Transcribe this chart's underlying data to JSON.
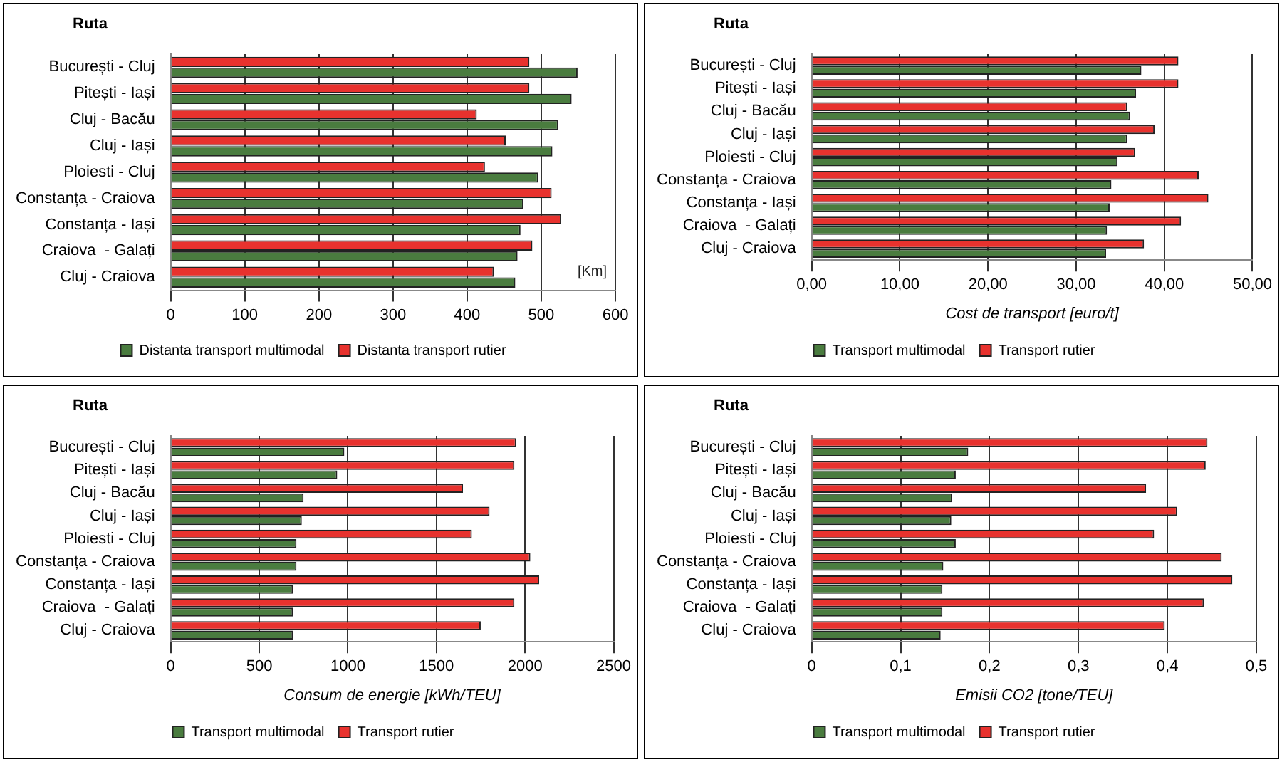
{
  "chart_data": [
    {
      "type": "bar",
      "orientation": "horizontal",
      "ylabel": "Ruta",
      "categories": [
        "București - Cluj",
        "Pitești - Iași",
        "Cluj - Bacău",
        "Cluj - Iași",
        "Ploiesti - Cluj",
        "Constanța - Craiova",
        "Constanța - Iași",
        "Craiova  - Galați",
        "Cluj - Craiova"
      ],
      "series": [
        {
          "name": "Distanta transport rutier",
          "color": "#e8322e",
          "values": [
            484,
            484,
            413,
            452,
            424,
            514,
            527,
            488,
            436
          ]
        },
        {
          "name": "Distanta transport multimodal",
          "color": "#4a7c3f",
          "values": [
            549,
            541,
            523,
            515,
            496,
            476,
            472,
            468,
            465
          ]
        }
      ],
      "xlim": [
        0,
        600
      ],
      "xticks": [
        0,
        100,
        200,
        300,
        400,
        500,
        600
      ],
      "grid": "x",
      "legend": "bottom",
      "annotations": [
        "[Km]"
      ]
    },
    {
      "type": "bar",
      "orientation": "horizontal",
      "ylabel": "Ruta",
      "xlabel": "Cost de transport [euro/t]",
      "categories": [
        "București - Cluj",
        "Pitești - Iași",
        "Cluj - Bacău",
        "Cluj - Iași",
        "Ploiesti - Cluj",
        "Constanța - Craiova",
        "Constanța - Iași",
        "Craiova  - Galați",
        "Cluj - Craiova"
      ],
      "series": [
        {
          "name": "Transport rutier",
          "color": "#e8322e",
          "values": [
            41.6,
            41.6,
            35.8,
            38.9,
            36.7,
            43.9,
            45.0,
            41.9,
            37.7
          ]
        },
        {
          "name": "Transport multimodal",
          "color": "#4a7c3f",
          "values": [
            37.4,
            36.8,
            36.1,
            35.8,
            34.7,
            34.0,
            33.8,
            33.5,
            33.4
          ]
        }
      ],
      "xlim": [
        0,
        50
      ],
      "xticks": [
        {
          "value": 0,
          "label": "0,00"
        },
        {
          "value": 10,
          "label": "10,00"
        },
        {
          "value": 20,
          "label": "20,00"
        },
        {
          "value": 30,
          "label": "30,00"
        },
        {
          "value": 40,
          "label": "40,00"
        },
        {
          "value": 50,
          "label": "50,00"
        }
      ],
      "grid": "x",
      "legend": "bottom"
    },
    {
      "type": "bar",
      "orientation": "horizontal",
      "ylabel": "Ruta",
      "xlabel": "Consum de energie [kWh/TEU]",
      "categories": [
        "București - Cluj",
        "Pitești - Iași",
        "Cluj - Bacău",
        "Cluj - Iași",
        "Ploiesti - Cluj",
        "Constanța - Craiova",
        "Constanța - Iași",
        "Craiova  - Galați",
        "Cluj - Craiova"
      ],
      "series": [
        {
          "name": "Transport rutier",
          "color": "#e8322e",
          "values": [
            1950,
            1940,
            1650,
            1800,
            1700,
            2030,
            2080,
            1940,
            1750
          ]
        },
        {
          "name": "Transport multimodal",
          "color": "#4a7c3f",
          "values": [
            980,
            940,
            750,
            740,
            710,
            710,
            690,
            690,
            690
          ]
        }
      ],
      "xlim": [
        0,
        2500
      ],
      "xticks": [
        0,
        500,
        1000,
        1500,
        2000,
        2500
      ],
      "grid": "x",
      "legend": "bottom"
    },
    {
      "type": "bar",
      "orientation": "horizontal",
      "ylabel": "Ruta",
      "xlabel": "Emisii CO2 [tone/TEU]",
      "categories": [
        "București - Cluj",
        "Pitești - Iași",
        "Cluj - Bacău",
        "Cluj - Iași",
        "Ploiesti - Cluj",
        "Constanța - Craiova",
        "Constanța - Iași",
        "Craiova  - Galați",
        "Cluj - Craiova"
      ],
      "series": [
        {
          "name": "Transport rutier",
          "color": "#e8322e",
          "values": [
            0.445,
            0.443,
            0.376,
            0.411,
            0.385,
            0.461,
            0.473,
            0.441,
            0.397
          ]
        },
        {
          "name": "Transport multimodal",
          "color": "#4a7c3f",
          "values": [
            0.176,
            0.162,
            0.158,
            0.157,
            0.162,
            0.148,
            0.147,
            0.147,
            0.145
          ]
        }
      ],
      "xlim": [
        0,
        0.5
      ],
      "xticks": [
        0,
        {
          "value": 0.1,
          "label": "0,1"
        },
        {
          "value": 0.2,
          "label": "0,2"
        },
        {
          "value": 0.3,
          "label": "0,3"
        },
        {
          "value": 0.4,
          "label": "0,4"
        },
        {
          "value": 0.5,
          "label": "0,5"
        }
      ],
      "grid": "x",
      "legend": "bottom"
    }
  ]
}
